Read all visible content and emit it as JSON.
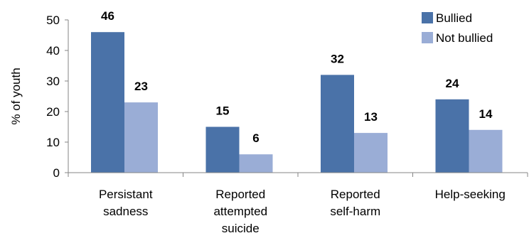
{
  "chart_data": {
    "type": "bar",
    "categories": [
      [
        "Persistant",
        "sadness"
      ],
      [
        "Reported",
        "attempted",
        "suicide"
      ],
      [
        "Reported",
        "self-harm"
      ],
      [
        "Help-seeking"
      ]
    ],
    "series": [
      {
        "name": "Bullied",
        "values": [
          46,
          15,
          32,
          24
        ],
        "color": "#4a72a8"
      },
      {
        "name": "Not bullied",
        "values": [
          23,
          6,
          13,
          14
        ],
        "color": "#9aadd6"
      }
    ],
    "title": "",
    "xlabel": "",
    "ylabel": "% of youth",
    "ylim": [
      0,
      50
    ],
    "yticks": [
      0,
      10,
      20,
      30,
      40,
      50
    ],
    "grid": false,
    "legend_position": "top-right",
    "data_labels": true
  }
}
